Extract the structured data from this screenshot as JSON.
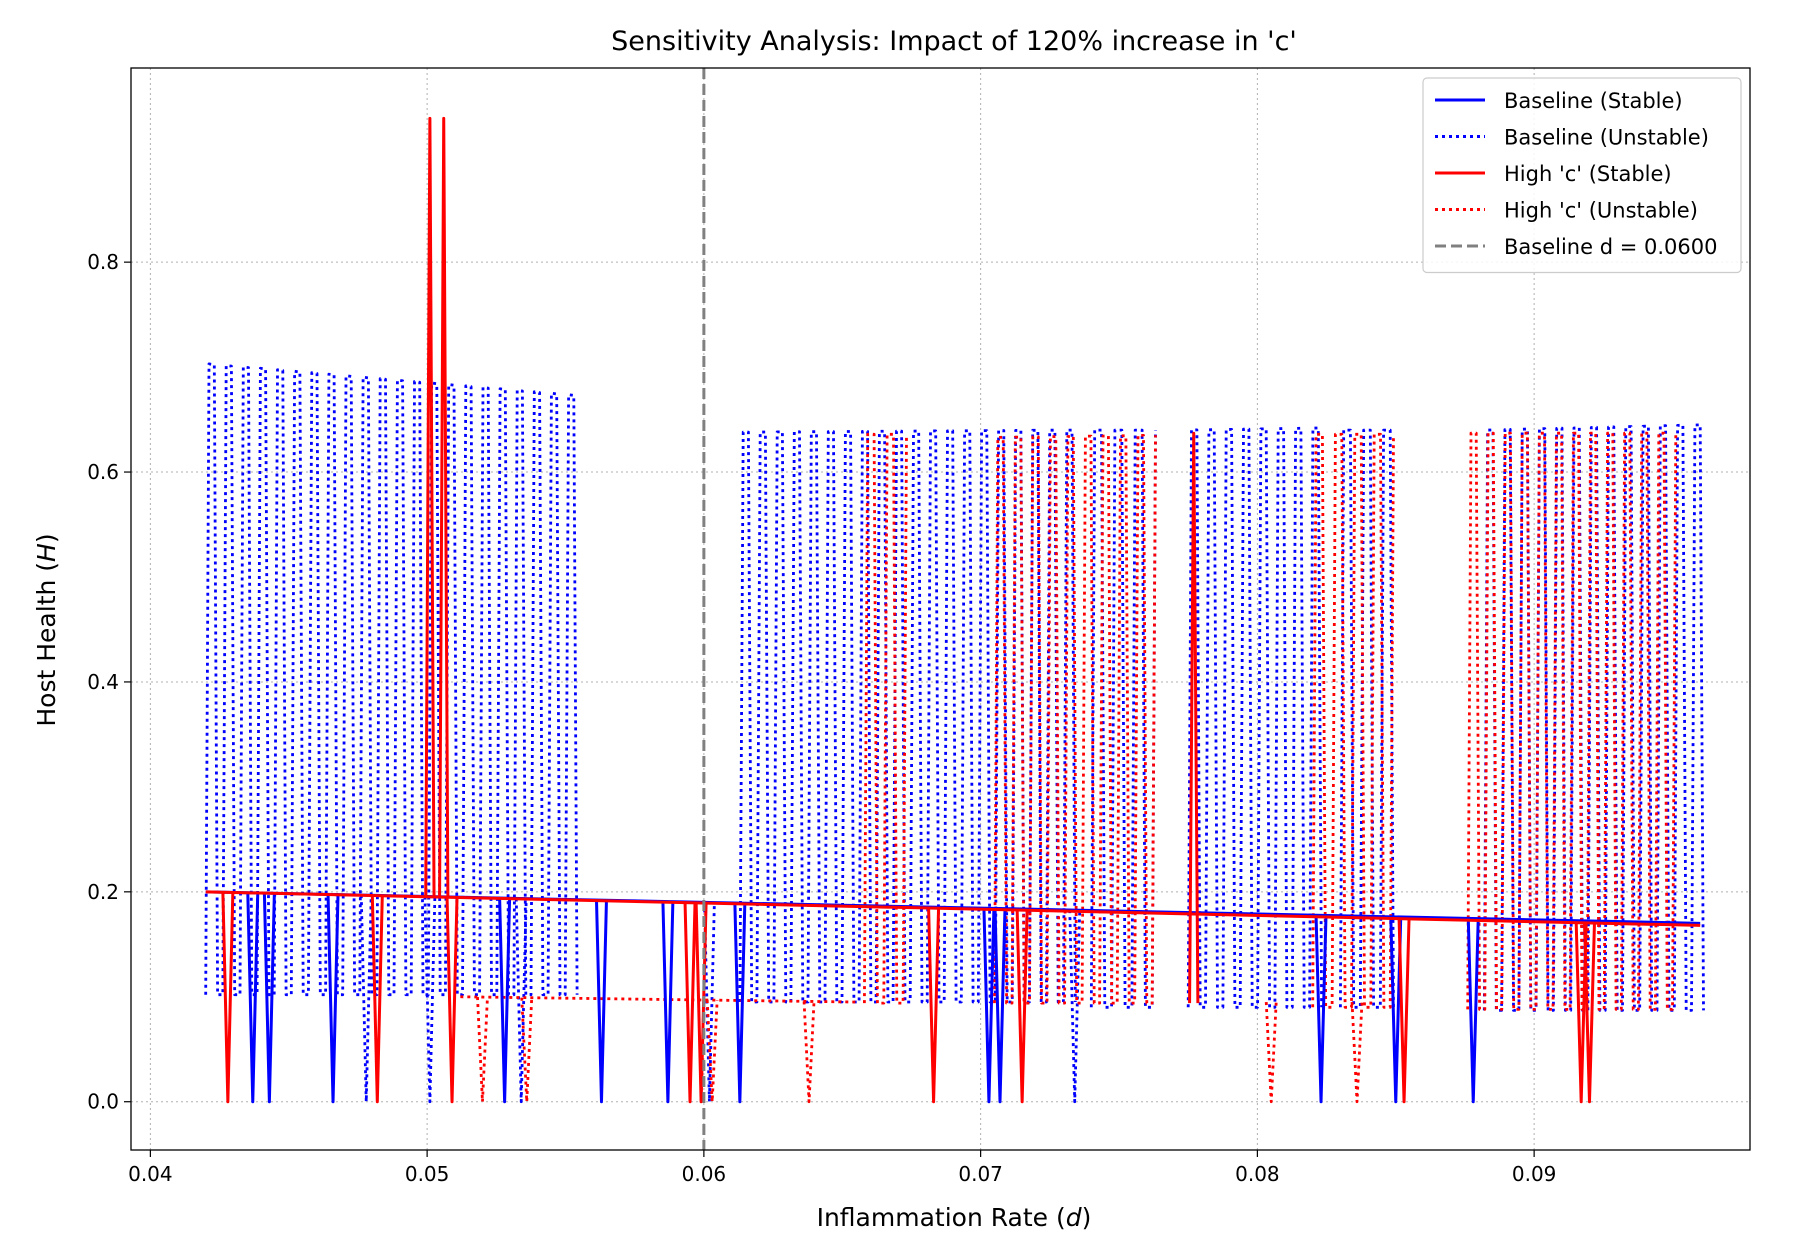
{
  "chart_data": {
    "type": "line",
    "title": "Sensitivity Analysis: Impact of 120% increase in 'c'",
    "xlabel": "Inflammation Rate (d)",
    "ylabel": "Host Health (H)",
    "xlim": [
      0.0393,
      0.0978
    ],
    "ylim": [
      -0.046,
      0.985
    ],
    "x_ticks": [
      "0.04",
      "0.05",
      "0.06",
      "0.07",
      "0.08",
      "0.09"
    ],
    "y_ticks": [
      "0.0",
      "0.2",
      "0.4",
      "0.6",
      "0.8"
    ],
    "grid": true,
    "legend_position": "top-right",
    "reference_line": {
      "label": "Baseline d = 0.0600",
      "x": 0.06,
      "color": "#808080",
      "style": "dashed"
    },
    "legend": [
      {
        "label": "Baseline (Stable)",
        "color": "#0000ff",
        "style": "solid"
      },
      {
        "label": "Baseline (Unstable)",
        "color": "#0000ff",
        "style": "dotted"
      },
      {
        "label": "High 'c' (Stable)",
        "color": "#ff0000",
        "style": "solid"
      },
      {
        "label": "High 'c' (Unstable)",
        "color": "#ff0000",
        "style": "dotted"
      },
      {
        "label": "Baseline d = 0.0600",
        "color": "#808080",
        "style": "dashed"
      }
    ],
    "series": [
      {
        "name": "Baseline (Stable)",
        "color": "#0000ff",
        "style": "solid",
        "stable_branch": {
          "x": [
            0.042,
            0.096
          ],
          "y": [
            0.2,
            0.17
          ]
        },
        "drops_to_zero_at": [
          0.0437,
          0.0443,
          0.0466,
          0.0528,
          0.0563,
          0.0587,
          0.0613,
          0.0703,
          0.0707,
          0.0823,
          0.085,
          0.0878
        ]
      },
      {
        "name": "Baseline (Unstable)",
        "color": "#0000ff",
        "style": "dotted",
        "oscillation_bands": [
          {
            "x_start": 0.042,
            "x_end": 0.0553,
            "high": [
              0.703,
              0.673
            ],
            "low": 0.102
          },
          {
            "x_start": 0.0613,
            "x_end": 0.0733,
            "high": [
              0.638,
              0.64
            ],
            "low": 0.095
          },
          {
            "x_start": 0.074,
            "x_end": 0.0762,
            "high": [
              0.64,
              0.64
            ],
            "low": 0.09
          },
          {
            "x_start": 0.0775,
            "x_end": 0.0822,
            "high": [
              0.64,
              0.642
            ],
            "low": 0.09
          },
          {
            "x_start": 0.083,
            "x_end": 0.0848,
            "high": [
              0.64,
              0.64
            ],
            "low": 0.09
          },
          {
            "x_start": 0.0882,
            "x_end": 0.096,
            "high": [
              0.64,
              0.645
            ],
            "low": 0.087
          }
        ],
        "drops_to_zero_at": [
          0.0478,
          0.0501,
          0.0534,
          0.0602,
          0.0734
        ]
      },
      {
        "name": "High 'c' (Stable)",
        "color": "#ff0000",
        "style": "solid",
        "stable_branch": {
          "x": [
            0.042,
            0.096
          ],
          "y": [
            0.2,
            0.168
          ]
        },
        "drops_to_zero_at": [
          0.0428,
          0.0482,
          0.0509,
          0.0595,
          0.0599,
          0.0683,
          0.0715,
          0.0853,
          0.0917,
          0.092
        ],
        "spikes": [
          {
            "x": [
              0.0501,
              0.0506
            ],
            "peak": 0.937
          }
        ],
        "jumps": [
          {
            "x": 0.0777,
            "high": 0.637,
            "low": 0.094
          }
        ]
      },
      {
        "name": "High 'c' (Unstable)",
        "color": "#ff0000",
        "style": "dotted",
        "oscillation_bands": [
          {
            "x_start": 0.0658,
            "x_end": 0.0672,
            "high": [
              0.636,
              0.636
            ],
            "low": 0.094
          },
          {
            "x_start": 0.0705,
            "x_end": 0.0762,
            "high": [
              0.633,
              0.635
            ],
            "low": 0.094
          },
          {
            "x_start": 0.082,
            "x_end": 0.0848,
            "high": [
              0.636,
              0.636
            ],
            "low": 0.09
          },
          {
            "x_start": 0.0876,
            "x_end": 0.095,
            "high": [
              0.637,
              0.637
            ],
            "low": 0.088
          }
        ],
        "low_branch": {
          "x": [
            0.0512,
            0.0655
          ],
          "y": [
            0.1,
            0.095
          ]
        },
        "drops_to_zero_at": [
          0.052,
          0.0536,
          0.0603,
          0.0638,
          0.0805,
          0.0836
        ]
      }
    ]
  }
}
